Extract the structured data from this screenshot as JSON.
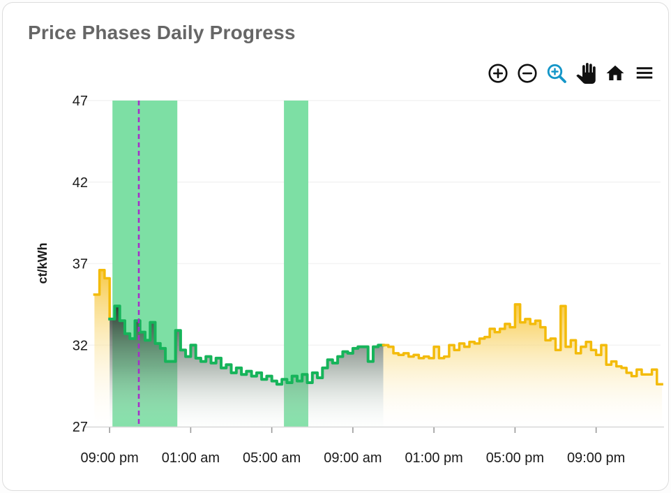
{
  "card": {
    "title": "Price Phases Daily Progress",
    "title_color": "#666666"
  },
  "toolbar": {
    "icon_color": "#111111",
    "active_color": "#1496c8",
    "buttons": [
      {
        "name": "zoom-in-icon",
        "active": false
      },
      {
        "name": "zoom-out-icon",
        "active": false
      },
      {
        "name": "box-zoom-icon",
        "active": true
      },
      {
        "name": "pan-icon",
        "active": false
      },
      {
        "name": "home-icon",
        "active": false
      },
      {
        "name": "menu-icon",
        "active": false
      }
    ]
  },
  "chart_data": {
    "type": "step-area",
    "title": "Price Phases Daily Progress",
    "xlabel": "",
    "ylabel": "ct/kWh",
    "ylim": [
      27,
      47
    ],
    "xlim": [
      0.1,
      28.35
    ],
    "x_unit": "hours since 20:00 (day start)",
    "start_time_label": "20:15",
    "step_minutes": 15,
    "grid": "horizontal",
    "legend": "none",
    "y_ticks": [
      27,
      32,
      37,
      42,
      47
    ],
    "x_ticks": [
      {
        "hour": 1,
        "label": "09:00 pm"
      },
      {
        "hour": 5,
        "label": "01:00 am"
      },
      {
        "hour": 9,
        "label": "05:00 am"
      },
      {
        "hour": 13,
        "label": "09:00 am"
      },
      {
        "hour": 17,
        "label": "01:00 pm"
      },
      {
        "hour": 21,
        "label": "05:00 pm"
      },
      {
        "hour": 25,
        "label": "09:00 pm"
      }
    ],
    "bands": [
      {
        "name": "green-phase-window-1",
        "from": 1.14,
        "to": 4.34
      },
      {
        "name": "green-phase-window-2",
        "from": 9.6,
        "to": 10.8
      }
    ],
    "now_hour": 2.44,
    "segments": [
      {
        "name": "price-evening-yellow",
        "color": "yellow",
        "fill": "yellow",
        "start_hour": 0.25,
        "values": [
          35.1,
          36.6,
          36.1
        ]
      },
      {
        "name": "price-green-phase",
        "color": "green",
        "fill": "dark",
        "start_hour": 1.0,
        "values": [
          33.6,
          34.4,
          33.5,
          32.7,
          32.4,
          33.5,
          32.8,
          32.3,
          33.4,
          32.1,
          31.8,
          31.0,
          31.0,
          32.9,
          31.7,
          31.3,
          32.0,
          31.2,
          31.0,
          31.3,
          30.9,
          31.2,
          30.6,
          30.8,
          30.3,
          30.6,
          30.2,
          30.4,
          30.1,
          30.3,
          29.9,
          30.1,
          29.8,
          29.6,
          29.9,
          29.7,
          30.1,
          29.8,
          30.2,
          29.7,
          30.3,
          30.0,
          30.6,
          31.1,
          30.9,
          31.3,
          31.6,
          31.5,
          31.8,
          31.9,
          31.9,
          31.0,
          31.9,
          32.0
        ]
      },
      {
        "name": "price-next-day-yellow",
        "color": "yellow",
        "fill": "yellow",
        "start_hour": 14.5,
        "values": [
          32.0,
          31.9,
          31.5,
          31.4,
          31.5,
          31.3,
          31.4,
          31.2,
          31.3,
          31.2,
          31.9,
          31.2,
          31.3,
          32.0,
          31.7,
          32.1,
          31.9,
          32.2,
          32.1,
          32.4,
          32.5,
          33.0,
          32.8,
          33.0,
          33.3,
          33.1,
          34.5,
          33.4,
          33.6,
          33.3,
          33.5,
          33.1,
          32.3,
          32.4,
          31.7,
          34.4,
          31.9,
          32.3,
          31.5,
          31.9,
          32.2,
          31.7,
          31.4,
          32.0,
          30.8,
          31.0,
          30.7,
          30.6,
          30.3,
          30.1,
          30.5,
          30.2,
          30.2,
          30.5,
          29.6
        ]
      }
    ],
    "colors": {
      "line_yellow": "#f3bb0b",
      "line_green": "#16b45a",
      "band": "#7ddfa4",
      "now_line": "#a62fc9",
      "grid": "#f3f3f3",
      "axis": "#d8d8d8",
      "tick": "#9a9a9a",
      "label": "#1a1a1a",
      "fill_yellow_top": "rgba(247,198,60,0.95)",
      "fill_yellow_mid": "rgba(250,225,150,0.62)",
      "fill_yellow_bottom": "rgba(255,253,246,0.06)",
      "fill_dark_top": "rgba(43,48,44,0.94)",
      "fill_dark_mid": "rgba(105,122,110,0.50)",
      "fill_dark_bottom": "rgba(232,244,236,0.08)"
    }
  }
}
